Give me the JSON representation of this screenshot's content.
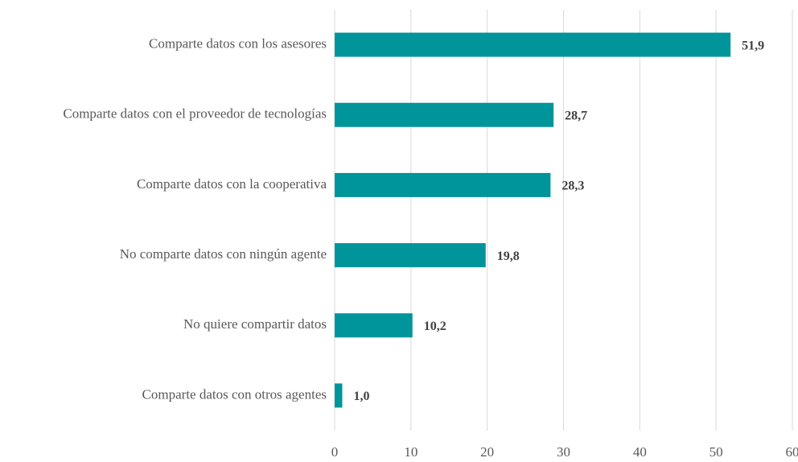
{
  "chart_data": {
    "type": "bar",
    "orientation": "horizontal",
    "categories": [
      "Comparte datos con los asesores",
      "Comparte datos con el proveedor de tecnologías",
      "Comparte datos con la cooperativa",
      "No comparte datos con ningún agente",
      "No quiere compartir datos",
      "Comparte datos con otros agentes"
    ],
    "values": [
      51.9,
      28.7,
      28.3,
      19.8,
      10.2,
      1.0
    ],
    "value_labels": [
      "51,9",
      "28,7",
      "28,3",
      "19,8",
      "10,2",
      "1,0"
    ],
    "color": "#00959b",
    "xlim": [
      0,
      60
    ],
    "xticks": [
      0,
      10,
      20,
      30,
      40,
      50,
      60
    ],
    "grid": true
  }
}
